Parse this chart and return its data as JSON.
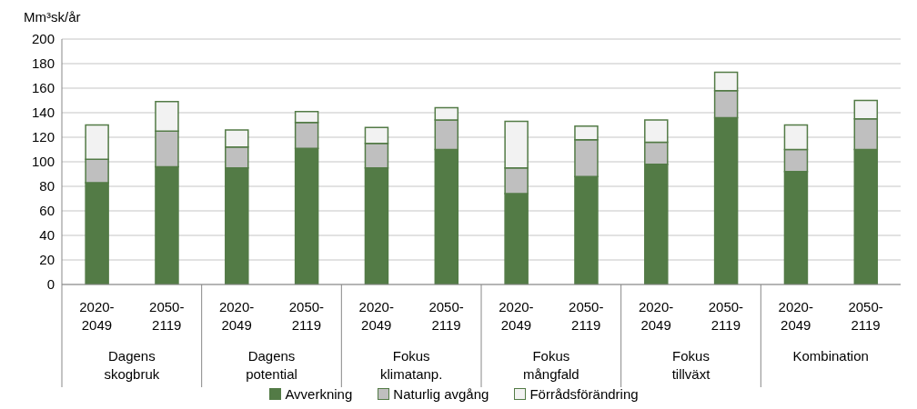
{
  "chart_data": {
    "type": "bar",
    "ylabel": "Mm³sk/år",
    "categories": [
      "2020-2049",
      "2050-2119",
      "2020-2049",
      "2050-2119",
      "2020-2049",
      "2050-2119",
      "2020-2049",
      "2050-2119",
      "2020-2049",
      "2050-2119",
      "2020-2049",
      "2050-2119"
    ],
    "annotations": [
      "Dagens skogbruk",
      "Dagens potential",
      "Fokus klimatanp.",
      "Fokus mångfald",
      "Fokus tillväxt",
      "Kombination"
    ],
    "stacked": true,
    "series": [
      {
        "name": "Avverkning",
        "color": "#537b46",
        "values": [
          83,
          96,
          95,
          111,
          95,
          110,
          74,
          88,
          98,
          136,
          92,
          110
        ]
      },
      {
        "name": "Naturlig avgång",
        "color": "#bfbfbf",
        "values": [
          19,
          29,
          17,
          21,
          20,
          24,
          21,
          30,
          18,
          22,
          18,
          25
        ]
      },
      {
        "name": "Förrådsförändring",
        "color": "#f2f2f2",
        "values": [
          28,
          24,
          14,
          9,
          13,
          10,
          38,
          11,
          18,
          15,
          20,
          15
        ]
      }
    ],
    "ylim": [
      0,
      200
    ],
    "yticks": [
      0,
      20,
      40,
      60,
      80,
      100,
      120,
      140,
      160,
      180,
      200
    ],
    "grid": "y",
    "legend": "bottom"
  }
}
